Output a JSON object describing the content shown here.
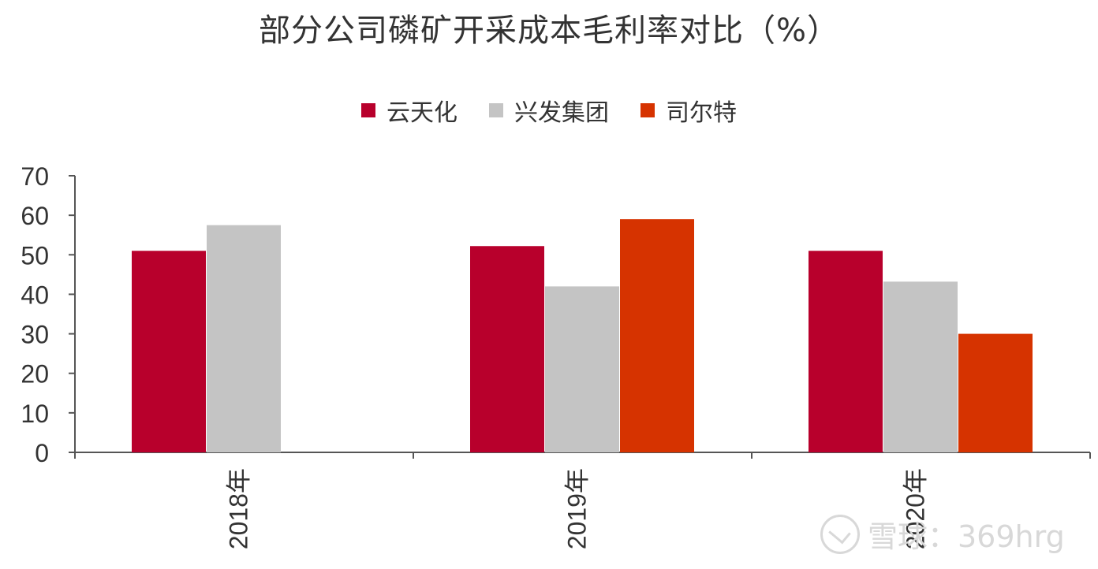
{
  "colors": {
    "axis": "#555555",
    "text": "#333333"
  },
  "chart_data": {
    "type": "bar",
    "title": "部分公司磷矿开采成本毛利率对比（%）",
    "categories": [
      "2018年",
      "2019年",
      "2020年"
    ],
    "series": [
      {
        "name": "云天化",
        "color": "#b8002c",
        "values": [
          51,
          52.2,
          51
        ]
      },
      {
        "name": "兴发集团",
        "color": "#c4c4c4",
        "values": [
          57.5,
          42,
          43.2
        ]
      },
      {
        "name": "司尔特",
        "color": "#d63300",
        "values": [
          null,
          59,
          30
        ]
      }
    ],
    "ylim": [
      0,
      70
    ],
    "yticks": [
      0,
      10,
      20,
      30,
      40,
      50,
      60,
      70
    ],
    "legend_position": "top-center",
    "grid": false
  },
  "watermark": {
    "text": "雪球：369hrg"
  }
}
